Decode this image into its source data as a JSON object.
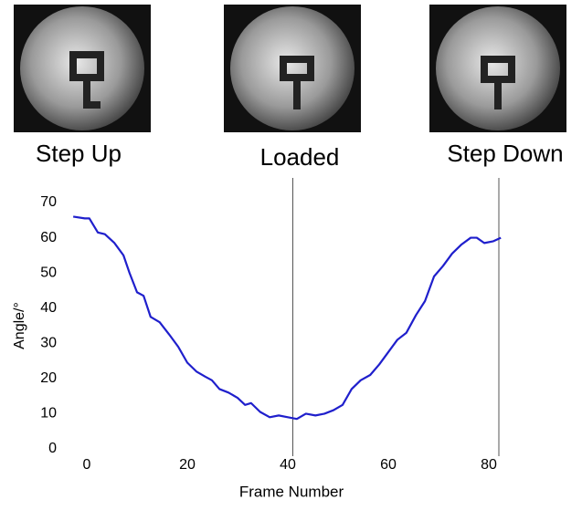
{
  "panels": [
    {
      "label": "Step Up"
    },
    {
      "label": "Loaded"
    },
    {
      "label": "Step Down"
    }
  ],
  "chart_data": {
    "type": "line",
    "xlabel": "Frame Number",
    "ylabel": "Angle/°",
    "x": [
      -2.7,
      -0.4,
      0.5,
      2.2,
      3.6,
      5.5,
      7.3,
      8.5,
      10,
      11.3,
      12.7,
      14.5,
      16.4,
      18.2,
      20,
      21.8,
      23.6,
      24.9,
      26.4,
      28.2,
      30,
      31.5,
      32.7,
      34.5,
      36.4,
      38.2,
      40,
      41.8,
      43.6,
      45.5,
      47.3,
      49.1,
      50.9,
      52.7,
      54.5,
      56.4,
      58.2,
      60,
      61.8,
      63.6,
      65.5,
      67.3,
      69.1,
      70.9,
      72.7,
      74.5,
      76.4,
      77.6,
      79.1,
      80.9,
      82.4
    ],
    "series": [
      {
        "color": "#1f1fcc",
        "values": [
          66,
          65.5,
          65.5,
          61.5,
          61,
          58.5,
          55,
          50,
          44.5,
          43.5,
          37.5,
          36,
          32.5,
          29,
          24.5,
          22,
          20.5,
          19.5,
          17,
          16,
          14.5,
          12.5,
          13,
          10.5,
          9,
          9.5,
          9,
          8.5,
          10,
          9.5,
          10,
          11,
          12.5,
          17,
          19.5,
          21,
          24,
          27.5,
          31,
          33,
          38,
          42,
          49,
          52,
          55.5,
          58,
          60,
          60,
          58.5,
          59,
          60
        ]
      }
    ],
    "reference_lines": [
      41,
      82
    ],
    "xlim": [
      -3,
      83
    ],
    "ylim": [
      0,
      70
    ],
    "xticks": [
      0,
      20,
      40,
      60,
      80
    ],
    "yticks": [
      0,
      10,
      20,
      30,
      40,
      50,
      60,
      70
    ]
  }
}
